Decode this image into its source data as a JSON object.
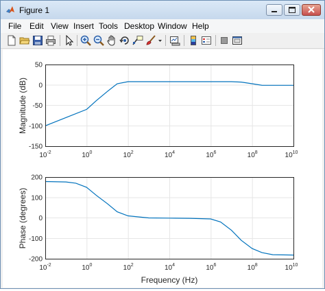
{
  "window": {
    "title": "Figure 1"
  },
  "menu": {
    "items": [
      "File",
      "Edit",
      "View",
      "Insert",
      "Tools",
      "Desktop",
      "Window",
      "Help"
    ]
  },
  "toolbar": {
    "icons": [
      "new-figure-icon",
      "open-file-icon",
      "save-icon",
      "print-icon",
      "edit-plot-icon",
      "zoom-in-icon",
      "zoom-out-icon",
      "pan-icon",
      "rotate-3d-icon",
      "data-cursor-icon",
      "brush-icon",
      "brush-dropdown-icon",
      "link-plot-icon",
      "insert-colorbar-icon",
      "insert-legend-icon",
      "hide-plot-tools-icon",
      "show-plot-tools-icon"
    ]
  },
  "colors": {
    "line": "#0072bd",
    "grid": "#e6e6e6",
    "axes": "#262626",
    "titlebar": "#c6d8ec"
  },
  "chart_data": [
    {
      "type": "line",
      "title": "",
      "xlabel": "",
      "ylabel": "Magnitude (dB)",
      "xscale": "log",
      "xlim": [
        0.01,
        10000000000
      ],
      "ylim": [
        -150,
        50
      ],
      "xticks": {
        "base": "10",
        "exponents": [
          "-2",
          "0",
          "2",
          "4",
          "6",
          "8",
          "10"
        ]
      },
      "yticks": [
        "50",
        "0",
        "-50",
        "-100",
        "-150"
      ],
      "grid": true,
      "series": [
        {
          "x": [
            0.01,
            0.1,
            1,
            3,
            10,
            30,
            100,
            1000,
            10000,
            100000,
            1000000,
            10000000,
            30000000,
            100000000,
            300000000,
            1000000000,
            10000000000
          ],
          "y": [
            -100,
            -80,
            -60,
            -38,
            -16,
            3,
            8,
            8,
            8,
            8,
            8,
            8,
            7,
            3,
            -1,
            -1,
            -1
          ]
        }
      ]
    },
    {
      "type": "line",
      "title": "",
      "xlabel": "Frequency (Hz)",
      "ylabel": "Phase (degrees)",
      "xscale": "log",
      "xlim": [
        0.01,
        10000000000
      ],
      "ylim": [
        -200,
        200
      ],
      "xticks": {
        "base": "10",
        "exponents": [
          "-2",
          "0",
          "2",
          "4",
          "6",
          "8",
          "10"
        ]
      },
      "yticks": [
        "200",
        "100",
        "0",
        "-100",
        "-200"
      ],
      "grid": true,
      "series": [
        {
          "x": [
            0.01,
            0.1,
            0.3,
            1,
            3,
            10,
            30,
            100,
            1000,
            10000,
            100000,
            1000000,
            3000000,
            10000000,
            30000000,
            100000000,
            300000000,
            1000000000,
            10000000000
          ],
          "y": [
            178,
            176,
            170,
            150,
            110,
            70,
            30,
            10,
            0,
            -1,
            -2,
            -5,
            -20,
            -60,
            -110,
            -150,
            -170,
            -180,
            -182
          ]
        }
      ]
    }
  ]
}
